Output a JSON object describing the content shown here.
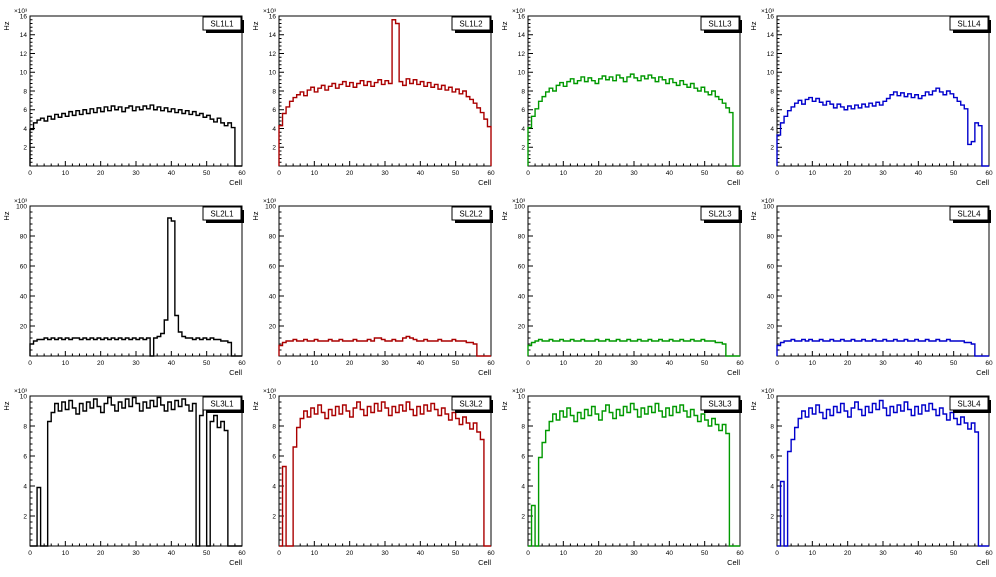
{
  "app": {
    "background": "#ffffff",
    "kind": "ROOT-style rate histograms canvas"
  },
  "axes_common": {
    "xlabel": "Cell",
    "ylabel": "Hz",
    "scale_label": "×10³",
    "x_ticks": [
      0,
      10,
      20,
      30,
      40,
      50,
      60
    ],
    "x_range": [
      0,
      60
    ]
  },
  "chart_data": [
    {
      "type": "line",
      "subtype": "step-histogram",
      "title": "SL1L1",
      "color": "#000000",
      "xlabel": "Cell",
      "ylabel": "Hz",
      "scale_label": "×10³",
      "x_range": [
        0,
        60
      ],
      "y_range": [
        0,
        16
      ],
      "x_ticks": [
        0,
        10,
        20,
        30,
        40,
        50,
        60
      ],
      "y_ticks": [
        2,
        4,
        6,
        8,
        10,
        12,
        14,
        16
      ],
      "values": [
        3.9,
        4.6,
        4.9,
        5.1,
        4.8,
        5.3,
        5.0,
        5.5,
        5.2,
        5.6,
        5.3,
        5.8,
        5.4,
        5.9,
        5.5,
        6.0,
        5.6,
        6.1,
        5.7,
        6.2,
        5.8,
        6.3,
        5.9,
        6.4,
        6.0,
        6.3,
        5.8,
        6.2,
        6.4,
        5.9,
        6.3,
        6.0,
        6.4,
        6.1,
        6.5,
        6.0,
        6.3,
        5.9,
        6.2,
        5.8,
        6.1,
        5.7,
        6.0,
        5.6,
        5.9,
        5.5,
        5.8,
        5.4,
        5.6,
        5.2,
        5.4,
        5.0,
        4.7,
        5.1,
        4.6,
        4.3,
        4.6,
        4.1,
        0,
        0
      ]
    },
    {
      "type": "line",
      "subtype": "step-histogram",
      "title": "SL1L2",
      "color": "#aa0000",
      "xlabel": "Cell",
      "ylabel": "Hz",
      "scale_label": "×10³",
      "x_range": [
        0,
        60
      ],
      "y_range": [
        0,
        16
      ],
      "x_ticks": [
        0,
        10,
        20,
        30,
        40,
        50,
        60
      ],
      "y_ticks": [
        2,
        4,
        6,
        8,
        10,
        12,
        14,
        16
      ],
      "values": [
        4.3,
        5.6,
        6.3,
        6.9,
        7.3,
        7.6,
        7.9,
        7.5,
        8.1,
        8.4,
        7.9,
        8.3,
        8.6,
        8.1,
        8.5,
        8.8,
        8.3,
        8.7,
        9.0,
        8.5,
        8.9,
        8.4,
        8.8,
        9.1,
        8.6,
        9.0,
        8.5,
        8.9,
        9.2,
        8.7,
        9.1,
        8.8,
        15.6,
        15.2,
        9.0,
        8.6,
        9.3,
        8.8,
        9.2,
        8.7,
        9.0,
        8.5,
        8.9,
        8.4,
        8.7,
        8.2,
        8.6,
        8.1,
        8.4,
        7.9,
        8.2,
        7.7,
        8.0,
        7.4,
        7.1,
        6.7,
        6.2,
        5.7,
        5.0,
        4.2
      ]
    },
    {
      "type": "line",
      "subtype": "step-histogram",
      "title": "SL1L3",
      "color": "#009900",
      "xlabel": "Cell",
      "ylabel": "Hz",
      "scale_label": "×10³",
      "x_range": [
        0,
        60
      ],
      "y_range": [
        0,
        16
      ],
      "x_ticks": [
        0,
        10,
        20,
        30,
        40,
        50,
        60
      ],
      "y_ticks": [
        2,
        4,
        6,
        8,
        10,
        12,
        14,
        16
      ],
      "values": [
        4.1,
        5.3,
        6.1,
        6.9,
        7.4,
        7.9,
        8.3,
        8.0,
        8.6,
        8.9,
        8.5,
        9.0,
        9.3,
        8.8,
        9.1,
        9.5,
        9.0,
        9.4,
        9.1,
        8.8,
        9.3,
        9.6,
        9.2,
        9.5,
        9.1,
        9.7,
        9.4,
        9.0,
        9.5,
        9.8,
        9.4,
        9.1,
        9.6,
        9.3,
        9.7,
        9.4,
        9.0,
        9.5,
        9.2,
        8.8,
        9.3,
        8.9,
        8.6,
        9.1,
        8.7,
        8.4,
        8.8,
        8.3,
        8.0,
        8.4,
        7.9,
        7.6,
        8.0,
        7.4,
        7.1,
        6.7,
        6.2,
        5.7,
        0,
        0
      ]
    },
    {
      "type": "line",
      "subtype": "step-histogram",
      "title": "SL1L4",
      "color": "#0000cc",
      "xlabel": "Cell",
      "ylabel": "Hz",
      "scale_label": "×10³",
      "x_range": [
        0,
        60
      ],
      "y_range": [
        0,
        16
      ],
      "x_ticks": [
        0,
        10,
        20,
        30,
        40,
        50,
        60
      ],
      "y_ticks": [
        2,
        4,
        6,
        8,
        10,
        12,
        14,
        16
      ],
      "values": [
        3.3,
        4.6,
        5.3,
        5.9,
        6.3,
        6.7,
        7.0,
        6.6,
        7.1,
        7.3,
        6.9,
        7.2,
        6.8,
        6.5,
        6.9,
        6.6,
        6.2,
        6.6,
        6.3,
        6.0,
        6.4,
        6.1,
        6.5,
        6.2,
        6.6,
        6.3,
        6.7,
        6.4,
        6.8,
        6.5,
        6.9,
        7.2,
        7.6,
        7.9,
        7.5,
        7.8,
        7.4,
        7.7,
        7.3,
        7.6,
        7.2,
        7.5,
        7.9,
        7.6,
        8.0,
        8.3,
        7.9,
        7.6,
        8.0,
        7.7,
        7.3,
        6.9,
        6.5,
        6.1,
        2.3,
        2.6,
        4.6,
        4.3,
        0,
        0
      ]
    },
    {
      "type": "line",
      "subtype": "step-histogram",
      "title": "SL2L1",
      "color": "#000000",
      "xlabel": "Cell",
      "ylabel": "Hz",
      "scale_label": "×10³",
      "x_range": [
        0,
        60
      ],
      "y_range": [
        0,
        100
      ],
      "x_ticks": [
        0,
        10,
        20,
        30,
        40,
        50,
        60
      ],
      "y_ticks": [
        20,
        40,
        60,
        80,
        100
      ],
      "values": [
        8,
        10,
        11,
        11,
        12,
        11,
        12,
        11,
        12,
        11,
        12,
        11,
        12,
        12,
        11,
        12,
        11,
        12,
        11,
        12,
        11,
        12,
        11,
        12,
        11,
        12,
        11,
        12,
        11,
        12,
        11,
        12,
        11,
        12,
        0,
        12,
        13,
        15,
        24,
        92,
        90,
        27,
        16,
        13,
        12,
        12,
        11,
        12,
        11,
        12,
        11,
        12,
        11,
        11,
        10,
        10,
        9,
        0,
        0,
        0
      ]
    },
    {
      "type": "line",
      "subtype": "step-histogram",
      "title": "SL2L2",
      "color": "#aa0000",
      "xlabel": "Cell",
      "ylabel": "Hz",
      "scale_label": "×10³",
      "x_range": [
        0,
        60
      ],
      "y_range": [
        0,
        100
      ],
      "x_ticks": [
        0,
        10,
        20,
        30,
        40,
        50,
        60
      ],
      "y_ticks": [
        20,
        40,
        60,
        80,
        100
      ],
      "values": [
        7,
        9,
        10,
        10,
        11,
        10,
        10,
        11,
        10,
        10,
        11,
        10,
        10,
        10,
        11,
        10,
        10,
        11,
        10,
        10,
        10,
        11,
        10,
        10,
        10,
        11,
        10,
        12,
        12,
        11,
        10,
        10,
        11,
        10,
        10,
        12,
        13,
        12,
        11,
        10,
        10,
        11,
        10,
        10,
        10,
        11,
        10,
        10,
        10,
        11,
        10,
        10,
        10,
        9,
        9,
        8,
        0,
        0,
        0,
        0
      ]
    },
    {
      "type": "line",
      "subtype": "step-histogram",
      "title": "SL2L3",
      "color": "#009900",
      "xlabel": "Cell",
      "ylabel": "Hz",
      "scale_label": "×10³",
      "x_range": [
        0,
        60
      ],
      "y_range": [
        0,
        100
      ],
      "x_ticks": [
        0,
        10,
        20,
        30,
        40,
        50,
        60
      ],
      "y_ticks": [
        20,
        40,
        60,
        80,
        100
      ],
      "values": [
        7,
        9,
        10,
        11,
        10,
        10,
        11,
        10,
        10,
        11,
        10,
        10,
        11,
        10,
        10,
        11,
        10,
        10,
        10,
        11,
        10,
        10,
        11,
        10,
        10,
        11,
        10,
        10,
        11,
        10,
        10,
        11,
        10,
        10,
        11,
        10,
        10,
        11,
        10,
        10,
        11,
        10,
        10,
        11,
        10,
        10,
        11,
        10,
        10,
        11,
        10,
        10,
        10,
        9,
        9,
        8,
        0,
        0,
        0,
        0
      ]
    },
    {
      "type": "line",
      "subtype": "step-histogram",
      "title": "SL2L4",
      "color": "#0000cc",
      "xlabel": "Cell",
      "ylabel": "Hz",
      "scale_label": "×10³",
      "x_range": [
        0,
        60
      ],
      "y_range": [
        0,
        100
      ],
      "x_ticks": [
        0,
        10,
        20,
        30,
        40,
        50,
        60
      ],
      "y_ticks": [
        20,
        40,
        60,
        80,
        100
      ],
      "values": [
        7,
        9,
        10,
        10,
        11,
        10,
        10,
        11,
        10,
        11,
        10,
        10,
        11,
        10,
        10,
        11,
        10,
        10,
        11,
        10,
        10,
        11,
        10,
        10,
        11,
        10,
        10,
        11,
        10,
        10,
        11,
        10,
        10,
        11,
        10,
        10,
        11,
        10,
        10,
        11,
        10,
        10,
        11,
        10,
        10,
        11,
        10,
        10,
        11,
        10,
        10,
        10,
        10,
        9,
        9,
        8,
        0,
        0,
        0,
        0
      ]
    },
    {
      "type": "line",
      "subtype": "step-histogram",
      "title": "SL3L1",
      "color": "#000000",
      "xlabel": "Cell",
      "ylabel": "Hz",
      "scale_label": "×10³",
      "x_range": [
        0,
        60
      ],
      "y_range": [
        0,
        10
      ],
      "x_ticks": [
        0,
        10,
        20,
        30,
        40,
        50,
        60
      ],
      "y_ticks": [
        2,
        4,
        6,
        8,
        10
      ],
      "values": [
        0,
        0,
        3.9,
        0,
        0,
        8.3,
        8.9,
        9.5,
        9.0,
        9.6,
        9.1,
        9.7,
        9.2,
        8.8,
        9.5,
        9.0,
        9.6,
        9.2,
        9.8,
        9.3,
        8.9,
        9.5,
        9.9,
        9.4,
        9.0,
        9.6,
        9.2,
        9.8,
        9.3,
        9.9,
        9.5,
        9.0,
        9.6,
        9.2,
        9.7,
        9.3,
        9.9,
        9.4,
        9.0,
        9.6,
        9.1,
        9.7,
        9.3,
        9.8,
        9.4,
        9.0,
        9.5,
        0,
        8.7,
        9.1,
        0,
        8.3,
        8.7,
        7.9,
        8.3,
        7.7,
        0,
        0,
        0,
        0
      ]
    },
    {
      "type": "line",
      "subtype": "step-histogram",
      "title": "SL3L2",
      "color": "#aa0000",
      "xlabel": "Cell",
      "ylabel": "Hz",
      "scale_label": "×10³",
      "x_range": [
        0,
        60
      ],
      "y_range": [
        0,
        10
      ],
      "x_ticks": [
        0,
        10,
        20,
        30,
        40,
        50,
        60
      ],
      "y_ticks": [
        2,
        4,
        6,
        8,
        10
      ],
      "values": [
        0,
        5.3,
        0,
        0,
        6.6,
        7.9,
        8.5,
        9.0,
        8.6,
        9.2,
        8.8,
        9.4,
        8.9,
        8.5,
        9.1,
        8.7,
        9.3,
        8.8,
        9.4,
        9.0,
        8.6,
        9.2,
        9.6,
        9.1,
        8.7,
        9.3,
        8.9,
        9.5,
        9.0,
        9.6,
        9.2,
        8.7,
        9.3,
        8.9,
        9.4,
        9.0,
        9.6,
        9.1,
        8.7,
        9.3,
        8.8,
        9.4,
        9.0,
        9.5,
        9.1,
        8.7,
        9.2,
        8.8,
        8.4,
        8.9,
        8.5,
        8.1,
        8.6,
        8.2,
        7.8,
        8.2,
        7.6,
        7.1,
        0,
        0
      ]
    },
    {
      "type": "line",
      "subtype": "step-histogram",
      "title": "SL3L3",
      "color": "#009900",
      "xlabel": "Cell",
      "ylabel": "Hz",
      "scale_label": "×10³",
      "x_range": [
        0,
        60
      ],
      "y_range": [
        0,
        10
      ],
      "x_ticks": [
        0,
        10,
        20,
        30,
        40,
        50,
        60
      ],
      "y_ticks": [
        2,
        4,
        6,
        8,
        10
      ],
      "values": [
        0,
        2.7,
        0,
        5.9,
        6.9,
        7.7,
        8.3,
        8.8,
        8.4,
        9.0,
        8.6,
        9.2,
        8.7,
        8.3,
        8.9,
        8.5,
        9.1,
        8.7,
        9.3,
        8.8,
        8.4,
        9.0,
        9.4,
        8.9,
        8.5,
        9.1,
        8.7,
        9.3,
        8.9,
        9.5,
        9.1,
        8.6,
        9.2,
        8.8,
        9.3,
        8.9,
        9.5,
        9.0,
        8.6,
        9.2,
        8.7,
        9.3,
        8.9,
        9.4,
        9.0,
        8.6,
        9.1,
        8.7,
        8.3,
        8.8,
        8.4,
        8.0,
        8.5,
        8.1,
        7.7,
        8.1,
        7.5,
        0,
        0,
        0
      ]
    },
    {
      "type": "line",
      "subtype": "step-histogram",
      "title": "SL3L4",
      "color": "#0000cc",
      "xlabel": "Cell",
      "ylabel": "Hz",
      "scale_label": "×10³",
      "x_range": [
        0,
        60
      ],
      "y_range": [
        0,
        10
      ],
      "x_ticks": [
        0,
        10,
        20,
        30,
        40,
        50,
        60
      ],
      "y_ticks": [
        2,
        4,
        6,
        8,
        10
      ],
      "values": [
        0,
        4.3,
        0,
        6.3,
        7.1,
        7.9,
        8.5,
        9.0,
        8.6,
        9.2,
        8.8,
        9.4,
        8.9,
        8.5,
        9.1,
        8.7,
        9.3,
        8.9,
        9.5,
        9.0,
        8.6,
        9.2,
        9.6,
        9.1,
        8.7,
        9.3,
        8.9,
        9.5,
        9.1,
        9.7,
        9.2,
        8.7,
        9.3,
        8.9,
        9.4,
        9.0,
        9.6,
        9.1,
        8.7,
        9.3,
        8.8,
        9.4,
        9.0,
        9.5,
        9.1,
        8.7,
        9.2,
        8.8,
        8.4,
        8.9,
        8.5,
        8.1,
        8.6,
        8.2,
        7.8,
        8.2,
        7.6,
        0,
        0,
        0
      ]
    }
  ]
}
